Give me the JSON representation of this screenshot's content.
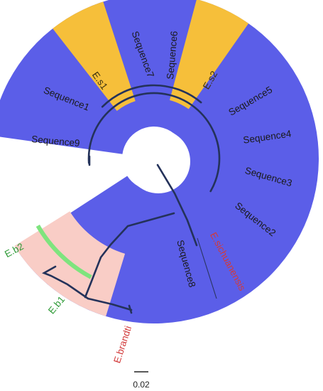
{
  "colors": {
    "background": "#ffffff",
    "blue_sector": "#5b5ee8",
    "orange_sector": "#f6bf3a",
    "pink_sector": "#f9cdc6",
    "green_highlight": "#7ee47e",
    "branch": "#24325a",
    "reference_label": "#d23a3a",
    "clade_label": "#2e9a36"
  },
  "leaves": {
    "sequence1": "Sequence1",
    "sequence2": "Sequence2",
    "sequence3": "Sequence3",
    "sequence4": "Sequence4",
    "sequence5": "Sequence5",
    "sequence6": "Sequence6",
    "sequence7": "Sequence7",
    "sequence8": "Sequence8",
    "sequence9": "Sequence9",
    "es1": "E.s1",
    "es2": "E.s2",
    "eb1": "E.b1",
    "eb2": "E.b2",
    "e_brandti": "E.brandti",
    "e_reference_red": "E.sichuanensis"
  },
  "scale_bar": {
    "label": "0.02"
  }
}
